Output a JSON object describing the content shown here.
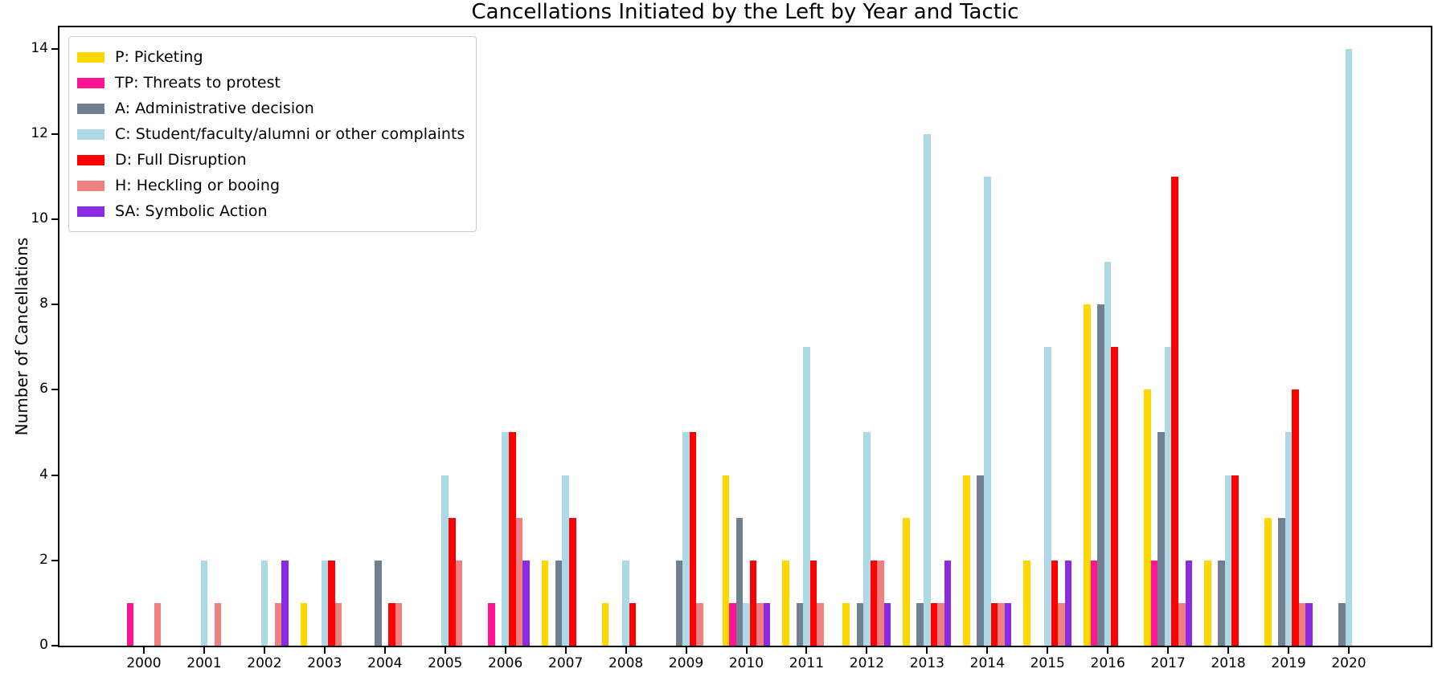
{
  "chart_data": {
    "type": "bar",
    "title": "Cancellations Initiated by the Left by Year and Tactic",
    "xlabel": "",
    "ylabel": "Number of Cancellations",
    "categories": [
      "2000",
      "2001",
      "2002",
      "2003",
      "2004",
      "2005",
      "2006",
      "2007",
      "2008",
      "2009",
      "2010",
      "2011",
      "2012",
      "2013",
      "2014",
      "2015",
      "2016",
      "2017",
      "2018",
      "2019",
      "2020"
    ],
    "series": [
      {
        "key": "P",
        "label": "P: Picketing",
        "color": "#FFD700",
        "values": [
          0,
          0,
          0,
          1,
          0,
          0,
          0,
          2,
          1,
          0,
          4,
          2,
          1,
          3,
          4,
          2,
          8,
          6,
          2,
          3,
          0
        ]
      },
      {
        "key": "TP",
        "label": "TP: Threats to protest",
        "color": "#FF1493",
        "values": [
          1,
          0,
          0,
          0,
          0,
          0,
          1,
          0,
          0,
          0,
          1,
          0,
          0,
          0,
          0,
          0,
          2,
          2,
          0,
          0,
          0
        ]
      },
      {
        "key": "A",
        "label": "A: Administrative decision",
        "color": "#708090",
        "values": [
          0,
          0,
          0,
          0,
          2,
          0,
          0,
          2,
          0,
          2,
          3,
          1,
          1,
          1,
          4,
          0,
          8,
          5,
          2,
          3,
          1
        ]
      },
      {
        "key": "C",
        "label": "C: Student/faculty/alumni or other complaints",
        "color": "#ADD8E6",
        "values": [
          0,
          2,
          2,
          2,
          0,
          4,
          5,
          4,
          2,
          5,
          1,
          7,
          5,
          12,
          11,
          7,
          9,
          7,
          4,
          5,
          14
        ]
      },
      {
        "key": "D",
        "label": "D: Full Disruption",
        "color": "#FF0000",
        "values": [
          0,
          0,
          0,
          2,
          1,
          3,
          5,
          3,
          1,
          5,
          2,
          2,
          2,
          1,
          1,
          2,
          7,
          11,
          4,
          6,
          0
        ]
      },
      {
        "key": "H",
        "label": "H: Heckling or booing",
        "color": "#F08080",
        "values": [
          1,
          1,
          1,
          1,
          1,
          2,
          3,
          0,
          0,
          1,
          1,
          1,
          2,
          1,
          1,
          1,
          0,
          1,
          0,
          1,
          0
        ]
      },
      {
        "key": "SA",
        "label": "SA: Symbolic Action",
        "color": "#8A2BE2",
        "values": [
          0,
          0,
          2,
          0,
          0,
          0,
          2,
          0,
          0,
          0,
          1,
          0,
          1,
          2,
          1,
          2,
          0,
          2,
          0,
          1,
          0
        ]
      }
    ],
    "yticks": [
      0,
      2,
      4,
      6,
      8,
      10,
      12,
      14
    ],
    "ylim": [
      0,
      14.5
    ],
    "grid": false,
    "legend_position": "upper left",
    "axis_color": "#000000",
    "plot_background": "#ffffff"
  }
}
